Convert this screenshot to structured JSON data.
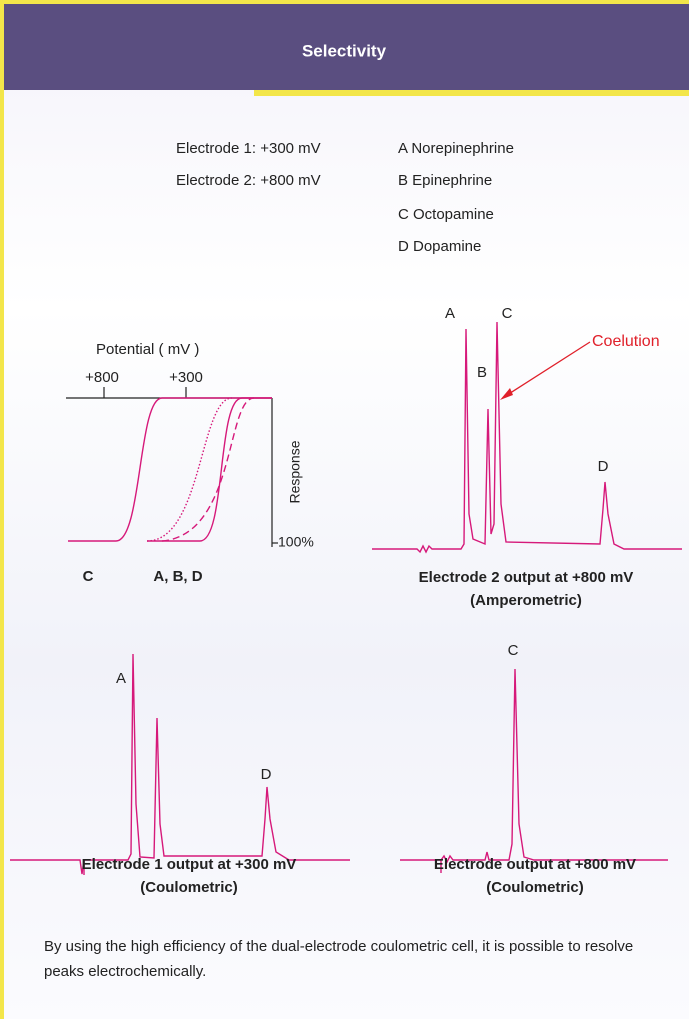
{
  "header": {
    "title": "Selectivity"
  },
  "electrodes": [
    "Electrode 1:  +300 mV",
    "Electrode 2:  +800 mV"
  ],
  "compounds": [
    "A  Norepinephrine",
    "B  Epinephrine",
    "C  Octopamine",
    "D  Dopamine"
  ],
  "potential_plot": {
    "axis_label": "Potential ( mV )",
    "ticks": [
      "+800",
      "+300"
    ],
    "response_label": "Response",
    "percent_label": "100%",
    "group_labels": [
      "C",
      "A, B, D"
    ]
  },
  "chromatograms": [
    {
      "peak_labels": [
        "A",
        "B",
        "C",
        "D"
      ],
      "annotation": "Coelution",
      "caption": [
        "Electrode 2 output at +800 mV",
        "(Amperometric)"
      ]
    },
    {
      "peak_labels": [
        "A",
        "D"
      ],
      "caption": [
        "Electrode 1 output at +300 mV",
        "(Coulometric)"
      ]
    },
    {
      "peak_labels": [
        "C"
      ],
      "caption": [
        "Electrode output at +800 mV",
        "(Coulometric)"
      ]
    }
  ],
  "footer": "By using the high efficiency of the dual-electrode coulometric cell, it is possible to resolve peaks electrochemically."
}
